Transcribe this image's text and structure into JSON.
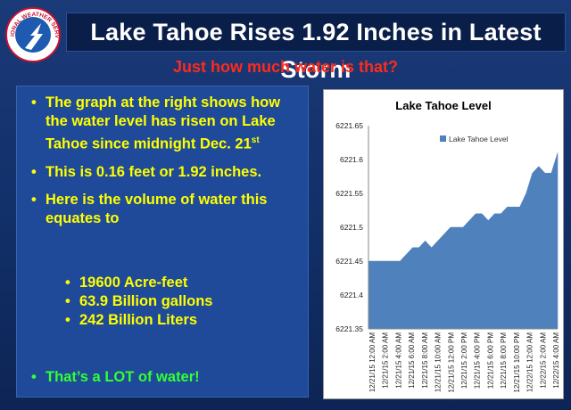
{
  "header": {
    "title": "Lake Tahoe Rises 1.92 Inches in Latest Storm",
    "subtitle": "Just how much water is that?",
    "logo": {
      "text": "NATIONAL WEATHER SERVICE",
      "icon": "nws-logo-icon"
    }
  },
  "bullets": {
    "b1_text": "The graph at the right shows how the water level has risen on Lake Tahoe since midnight Dec. 21",
    "b1_sup": "st",
    "b2": "This is 0.16 feet or 1.92 inches.",
    "b3": "Here is the volume of water this equates to",
    "sub": [
      "19600 Acre-feet",
      "63.9 Billion gallons",
      "242 Billion Liters"
    ],
    "b4": "That’s a LOT of water!",
    "bullet_char": "•"
  },
  "chart_data": {
    "type": "area",
    "title": "Lake Tahoe Level",
    "series": [
      {
        "name": "Lake Tahoe Level",
        "values": [
          6221.45,
          6221.45,
          6221.45,
          6221.45,
          6221.45,
          6221.45,
          6221.46,
          6221.47,
          6221.47,
          6221.48,
          6221.47,
          6221.48,
          6221.49,
          6221.5,
          6221.5,
          6221.5,
          6221.51,
          6221.52,
          6221.52,
          6221.51,
          6221.52,
          6221.52,
          6221.53,
          6221.53,
          6221.53,
          6221.55,
          6221.58,
          6221.59,
          6221.58,
          6221.58,
          6221.61
        ]
      }
    ],
    "x_tick_labels": [
      "12/21/15 12:00 AM",
      "12/21/15 2:00 AM",
      "12/21/15 4:00 AM",
      "12/21/15 6:00 AM",
      "12/21/15 8:00 AM",
      "12/21/15 10:00 AM",
      "12/21/15 12:00 PM",
      "12/21/15 2:00 PM",
      "12/21/15 4:00 PM",
      "12/21/15 6:00 PM",
      "12/21/15 8:00 PM",
      "12/21/15 10:00 PM",
      "12/22/15 12:00 AM",
      "12/22/15 2:00 AM",
      "12/22/15 4:00 AM"
    ],
    "y_ticks": [
      "6221.35",
      "6221.4",
      "6221.45",
      "6221.5",
      "6221.55",
      "6221.6",
      "6221.65"
    ],
    "ylim": [
      6221.35,
      6221.65
    ],
    "legend_position": "top-center",
    "color": "#4f81bd",
    "grid": false
  }
}
